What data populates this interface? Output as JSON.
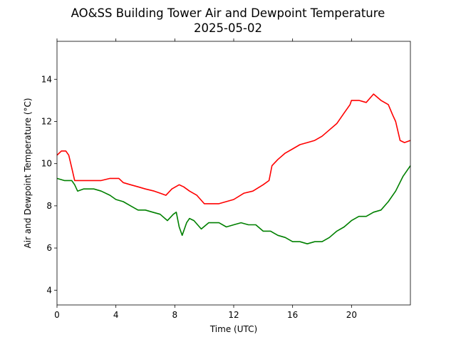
{
  "chart_data": {
    "type": "line",
    "title": "AO&SS Building Tower Air and Dewpoint Temperature",
    "subtitle": "2025-05-02",
    "xlabel": "Time (UTC)",
    "ylabel": "Air and Dewpoint Temperature (°C)",
    "xlim": [
      0,
      24
    ],
    "ylim": [
      3.3,
      15.8
    ],
    "xticks": [
      0,
      4,
      8,
      12,
      16,
      20
    ],
    "xtick_labels": [
      "0",
      "4",
      "8",
      "12",
      "16",
      "20"
    ],
    "yticks": [
      4,
      6,
      8,
      10,
      12,
      14
    ],
    "ytick_labels": [
      "4",
      "6",
      "8",
      "10",
      "12",
      "14"
    ],
    "grid": false,
    "series": [
      {
        "color": "#ff0000",
        "x": [
          0,
          0.3,
          0.6,
          0.8,
          1.0,
          1.2,
          1.4,
          2.0,
          3.0,
          3.6,
          4.2,
          4.5,
          5.0,
          5.5,
          6.0,
          6.6,
          7.0,
          7.4,
          7.8,
          8.3,
          8.6,
          9.0,
          9.5,
          10.0,
          10.3,
          11.0,
          12.0,
          12.7,
          13.3,
          14.0,
          14.4,
          14.6,
          15.0,
          15.5,
          16.0,
          16.5,
          17.0,
          17.5,
          18.0,
          18.5,
          19.0,
          19.5,
          19.9,
          20.0,
          20.5,
          21.0,
          21.5,
          22.0,
          22.5,
          22.8,
          23.0,
          23.3,
          23.6,
          24.0
        ],
        "y": [
          10.4,
          10.6,
          10.6,
          10.4,
          9.8,
          9.2,
          9.2,
          9.2,
          9.2,
          9.3,
          9.3,
          9.1,
          9.0,
          8.9,
          8.8,
          8.7,
          8.6,
          8.5,
          8.8,
          9.0,
          8.9,
          8.7,
          8.5,
          8.1,
          8.1,
          8.1,
          8.3,
          8.6,
          8.7,
          9.0,
          9.2,
          9.9,
          10.2,
          10.5,
          10.7,
          10.9,
          11.0,
          11.1,
          11.3,
          11.6,
          11.9,
          12.4,
          12.8,
          13.0,
          13.0,
          12.9,
          13.3,
          13.0,
          12.8,
          12.3,
          12.0,
          11.1,
          11.0,
          11.1
        ]
      },
      {
        "color": "#008000",
        "x": [
          0,
          0.5,
          1.0,
          1.2,
          1.4,
          1.8,
          2.5,
          3.0,
          3.6,
          4.0,
          4.5,
          5.0,
          5.5,
          6.0,
          6.5,
          7.0,
          7.5,
          7.9,
          8.1,
          8.3,
          8.5,
          8.8,
          9.0,
          9.3,
          9.8,
          10.3,
          11.0,
          11.5,
          12.0,
          12.5,
          13.0,
          13.5,
          14.0,
          14.5,
          15.0,
          15.5,
          16.0,
          16.5,
          17.0,
          17.5,
          18.0,
          18.5,
          19.0,
          19.5,
          20.0,
          20.5,
          21.0,
          21.5,
          22.0,
          22.5,
          23.0,
          23.5,
          24.0
        ],
        "y": [
          9.3,
          9.2,
          9.2,
          9.0,
          8.7,
          8.8,
          8.8,
          8.7,
          8.5,
          8.3,
          8.2,
          8.0,
          7.8,
          7.8,
          7.7,
          7.6,
          7.3,
          7.6,
          7.7,
          7.0,
          6.6,
          7.2,
          7.4,
          7.3,
          6.9,
          7.2,
          7.2,
          7.0,
          7.1,
          7.2,
          7.1,
          7.1,
          6.8,
          6.8,
          6.6,
          6.5,
          6.3,
          6.3,
          6.2,
          6.3,
          6.3,
          6.5,
          6.8,
          7.0,
          7.3,
          7.5,
          7.5,
          7.7,
          7.8,
          8.2,
          8.7,
          9.4,
          9.9
        ]
      }
    ]
  }
}
